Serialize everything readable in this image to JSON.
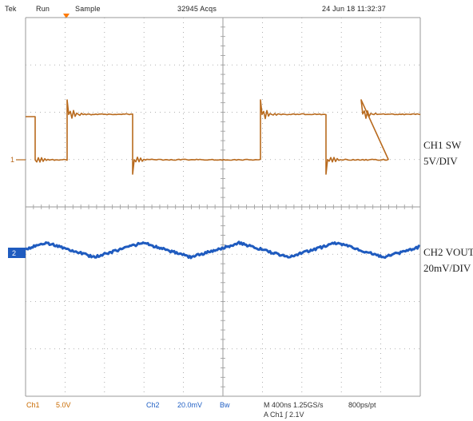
{
  "status": {
    "brand": "Tek",
    "mode": "Run",
    "acquisition": "Sample",
    "acq_count": "32945 Acqs",
    "timestamp": "24 Jun 18 11:32:37"
  },
  "channels": {
    "ch1": {
      "label_line1": "CH1 SW",
      "label_line2": "5V/DIV",
      "readout_name": "Ch1",
      "readout_scale": "5.0V",
      "color": "#b86a1e"
    },
    "ch2": {
      "label_line1": "CH2 VOUT",
      "label_line2": "20mV/DIV",
      "readout_name": "Ch2",
      "readout_scale": "20.0mV",
      "readout_bw": "Bw",
      "color": "#1f5bbf"
    }
  },
  "timebase": {
    "horizontal": "M 400ns  1.25GS/s",
    "record": "800ps/pt",
    "trigger": "A  Ch1  ∫  2.1V"
  },
  "markers": {
    "ch1_ground": "1",
    "ch2_ground": "2"
  },
  "colors": {
    "grid": "#9a9a9a",
    "trigger_marker": "#ff7a00"
  }
}
